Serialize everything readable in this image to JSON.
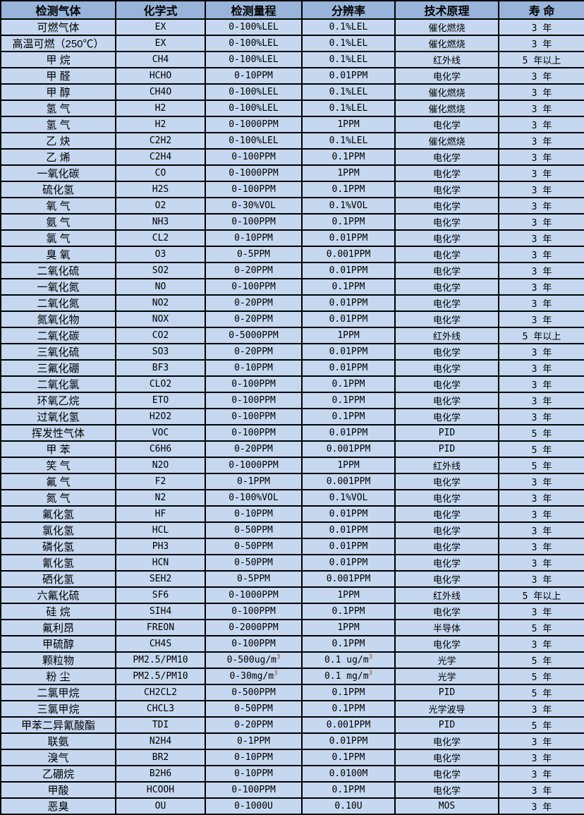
{
  "table": {
    "columns": [
      "检测气体",
      "化学式",
      "检测量程",
      "分辨率",
      "技术原理",
      "寿  命"
    ],
    "rows": [
      [
        "可燃气体",
        "EX",
        "0-100%LEL",
        "0.1%LEL",
        "催化燃烧",
        "3 年"
      ],
      [
        "高温可燃（250℃）",
        "EX",
        "0-100%LEL",
        "0.1%LEL",
        "催化燃烧",
        "3 年"
      ],
      [
        "甲  烷",
        "CH4",
        "0-100%LEL",
        "0.1%LEL",
        "红外线",
        "5 年以上"
      ],
      [
        "甲  醛",
        "HCHO",
        "0-10PPM",
        "0.01PPM",
        "电化学",
        "3 年"
      ],
      [
        "甲  醇",
        "CH4O",
        "0-100%LEL",
        "0.1%LEL",
        "催化燃烧",
        "3 年"
      ],
      [
        "氢  气",
        "H2",
        "0-100%LEL",
        "0.1%LEL",
        "催化燃烧",
        "3 年"
      ],
      [
        "氢  气",
        "H2",
        "0-1000PPM",
        "1PPM",
        "电化学",
        "3 年"
      ],
      [
        "乙  炔",
        "C2H2",
        "0-100%LEL",
        "0.1%LEL",
        "催化燃烧",
        "3 年"
      ],
      [
        "乙  烯",
        "C2H4",
        "0-100PPM",
        "0.1PPM",
        "电化学",
        "3 年"
      ],
      [
        "一氧化碳",
        "CO",
        "0-1000PPM",
        "1PPM",
        "电化学",
        "3 年"
      ],
      [
        "硫化氢",
        "H2S",
        "0-100PPM",
        "0.1PPM",
        "电化学",
        "3 年"
      ],
      [
        "氧  气",
        "O2",
        "0-30%VOL",
        "0.1%VOL",
        "电化学",
        "3 年"
      ],
      [
        "氨  气",
        "NH3",
        "0-100PPM",
        "0.1PPM",
        "电化学",
        "3 年"
      ],
      [
        "氯  气",
        "CL2",
        "0-10PPM",
        "0.01PPM",
        "电化学",
        "3 年"
      ],
      [
        "臭  氧",
        "O3",
        "0-5PPM",
        "0.001PPM",
        "电化学",
        "3 年"
      ],
      [
        "二氧化硫",
        "SO2",
        "0-20PPM",
        "0.01PPM",
        "电化学",
        "3 年"
      ],
      [
        "一氧化氮",
        "NO",
        "0-100PPM",
        "0.1PPM",
        "电化学",
        "3 年"
      ],
      [
        "二氧化氮",
        "NO2",
        "0-20PPM",
        "0.01PPM",
        "电化学",
        "3 年"
      ],
      [
        "氮氧化物",
        "NOX",
        "0-20PPM",
        "0.01PPM",
        "电化学",
        "3 年"
      ],
      [
        "二氧化碳",
        "CO2",
        "0-5000PPM",
        "1PPM",
        "红外线",
        "5 年以上"
      ],
      [
        "三氧化硫",
        "SO3",
        "0-20PPM",
        "0.01PPM",
        "电化学",
        "3 年"
      ],
      [
        "三氟化硼",
        "BF3",
        "0-10PPM",
        "0.01PPM",
        "电化学",
        "3 年"
      ],
      [
        "二氧化氯",
        "CLO2",
        "0-100PPM",
        "0.1PPM",
        "电化学",
        "3 年"
      ],
      [
        "环氧乙烷",
        "ETO",
        "0-100PPM",
        "0.1PPM",
        "电化学",
        "3 年"
      ],
      [
        "过氧化氢",
        "H2O2",
        "0-100PPM",
        "0.1PPM",
        "电化学",
        "3 年"
      ],
      [
        "挥发性气体",
        "VOC",
        "0-100PPM",
        "0.01PPM",
        "PID",
        "5 年"
      ],
      [
        "甲  苯",
        "C6H6",
        "0-20PPM",
        "0.001PPM",
        "PID",
        "5 年"
      ],
      [
        "笑  气",
        "N2O",
        "0-1000PPM",
        "1PPM",
        "红外线",
        "5 年"
      ],
      [
        "氟  气",
        "F2",
        "0-1PPM",
        "0.001PPM",
        "电化学",
        "3 年"
      ],
      [
        "氮  气",
        "N2",
        "0-100%VOL",
        "0.1%VOL",
        "电化学",
        "3 年"
      ],
      [
        "氟化氢",
        "HF",
        "0-10PPM",
        "0.01PPM",
        "电化学",
        "3 年"
      ],
      [
        "氯化氢",
        "HCL",
        "0-50PPM",
        "0.01PPM",
        "电化学",
        "3 年"
      ],
      [
        "磷化氢",
        "PH3",
        "0-50PPM",
        "0.01PPM",
        "电化学",
        "3 年"
      ],
      [
        "氰化氢",
        "HCN",
        "0-50PPM",
        "0.01PPM",
        "电化学",
        "3 年"
      ],
      [
        "硒化氢",
        "SEH2",
        "0-5PPM",
        "0.001PPM",
        "电化学",
        "3 年"
      ],
      [
        "六氟化硫",
        "SF6",
        "0-1000PPM",
        "1PPM",
        "红外线",
        "5 年以上"
      ],
      [
        "硅  烷",
        "SIH4",
        "0-100PPM",
        "0.1PPM",
        "电化学",
        "3 年"
      ],
      [
        "氟利昂",
        "FREON",
        "0-2000PPM",
        "1PPM",
        "半导体",
        "5 年"
      ],
      [
        "甲硫醇",
        "CH4S",
        "0-100PPM",
        "0.1PPM",
        "电化学",
        "3 年"
      ],
      [
        "颗粒物",
        "PM2.5/PM10",
        "0-500ug/m³",
        "0.1 ug/m³",
        "光学",
        "5 年"
      ],
      [
        "粉  尘",
        "PM2.5/PM10",
        "0-30mg/m³",
        "0.1 mg/m³",
        "光学",
        "5 年"
      ],
      [
        "二氯甲烷",
        "CH2CL2",
        "0-500PPM",
        "0.1PPM",
        "PID",
        "5 年"
      ],
      [
        "三氯甲烷",
        "CHCL3",
        "0-50PPM",
        "0.1PPM",
        "光学波导",
        "3 年"
      ],
      [
        "甲苯二异氰酸酯",
        "TDI",
        "0-20PPM",
        "0.001PPM",
        "PID",
        "5 年"
      ],
      [
        "联氨",
        "N2H4",
        "0-1PPM",
        "0.01PPM",
        "电化学",
        "3 年"
      ],
      [
        "溴气",
        "BR2",
        "0-10PPM",
        "0.1PPM",
        "电化学",
        "3 年"
      ],
      [
        "乙硼烷",
        "B2H6",
        "0-10PPM",
        "0.0100M",
        "电化学",
        "3 年"
      ],
      [
        "甲酸",
        "HCOOH",
        "0-100PPM",
        "0.1PPM",
        "电化学",
        "3 年"
      ],
      [
        "恶臭",
        "OU",
        "0-1000U",
        "0.10U",
        "MOS",
        "3 年"
      ]
    ]
  },
  "colors": {
    "header_bg": "#98b4d9",
    "row_bg": "#c5d8f0",
    "border": "#000000",
    "text": "#000000",
    "superscript": "#9c4a1f"
  }
}
